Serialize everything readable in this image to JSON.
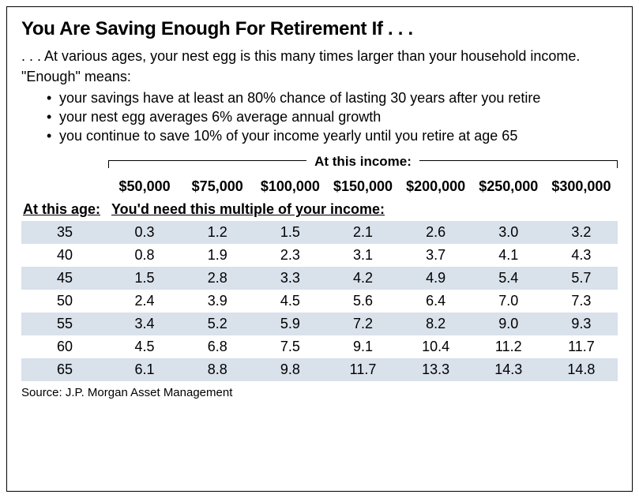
{
  "title": "You Are Saving Enough For Retirement If . . .",
  "intro": ". . . At various ages, your nest egg is this many times larger than your household income.",
  "enough_label": "\"Enough\" means:",
  "bullets": [
    "your savings have at least an 80% chance of lasting 30 years after you retire",
    "your nest egg averages 6% average annual growth",
    "you continue to save 10% of your income yearly until you retire at age 65"
  ],
  "table": {
    "income_header_label": "At this income:",
    "age_header_label": "At this age:",
    "subheader_label": "You'd need this multiple of your income:",
    "income_columns": [
      "$50,000",
      "$75,000",
      "$100,000",
      "$150,000",
      "$200,000",
      "$250,000",
      "$300,000"
    ],
    "rows": [
      {
        "age": "35",
        "values": [
          "0.3",
          "1.2",
          "1.5",
          "2.1",
          "2.6",
          "3.0",
          "3.2"
        ]
      },
      {
        "age": "40",
        "values": [
          "0.8",
          "1.9",
          "2.3",
          "3.1",
          "3.7",
          "4.1",
          "4.3"
        ]
      },
      {
        "age": "45",
        "values": [
          "1.5",
          "2.8",
          "3.3",
          "4.2",
          "4.9",
          "5.4",
          "5.7"
        ]
      },
      {
        "age": "50",
        "values": [
          "2.4",
          "3.9",
          "4.5",
          "5.6",
          "6.4",
          "7.0",
          "7.3"
        ]
      },
      {
        "age": "55",
        "values": [
          "3.4",
          "5.2",
          "5.9",
          "7.2",
          "8.2",
          "9.0",
          "9.3"
        ]
      },
      {
        "age": "60",
        "values": [
          "4.5",
          "6.8",
          "7.5",
          "9.1",
          "10.4",
          "11.2",
          "11.7"
        ]
      },
      {
        "age": "65",
        "values": [
          "6.1",
          "8.8",
          "9.8",
          "11.7",
          "13.3",
          "14.3",
          "14.8"
        ]
      }
    ],
    "stripe_color": "#d9e1eb",
    "background_color": "#ffffff"
  },
  "source": "Source:  J.P. Morgan Asset Management"
}
